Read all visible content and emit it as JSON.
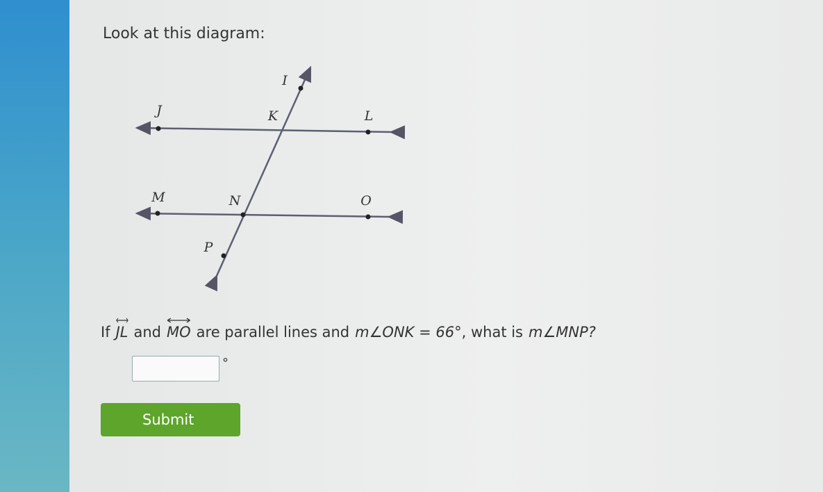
{
  "prompt": "Look at this diagram:",
  "diagram": {
    "points": [
      {
        "label": "I"
      },
      {
        "label": "J"
      },
      {
        "label": "K"
      },
      {
        "label": "L"
      },
      {
        "label": "M"
      },
      {
        "label": "N"
      },
      {
        "label": "O"
      },
      {
        "label": "P"
      }
    ]
  },
  "question": {
    "parts": [
      "If",
      "JL",
      "and",
      "MO",
      "are parallel lines and",
      "m∠ONK = 66°",
      ", what is",
      "m∠MNP?"
    ]
  },
  "answer_unit": "°",
  "submit": "Submit"
}
